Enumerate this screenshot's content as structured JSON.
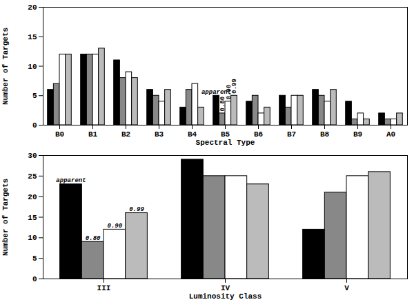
{
  "chart_data": [
    {
      "type": "bar",
      "xlabel": "Spectral Type",
      "ylabel": "Number of Targets",
      "categories": [
        "B0",
        "B1",
        "B2",
        "B3",
        "B4",
        "B5",
        "B6",
        "B7",
        "B8",
        "B9",
        "A0"
      ],
      "series": [
        {
          "name": "apparent",
          "color": "#000000",
          "values": [
            6,
            12,
            11,
            6,
            3,
            5,
            4,
            5,
            6,
            4,
            2
          ]
        },
        {
          "name": "0.80",
          "color": "#888888",
          "values": [
            7,
            12,
            8,
            5,
            6,
            2,
            5,
            3,
            5,
            1,
            1
          ]
        },
        {
          "name": "0.90",
          "color": "#ffffff",
          "values": [
            12,
            12,
            9,
            4,
            7,
            4,
            2,
            5,
            4,
            2,
            1
          ]
        },
        {
          "name": "0.99",
          "color": "#bbbbbb",
          "values": [
            12,
            13,
            8,
            6,
            3,
            5,
            3,
            5,
            6,
            1,
            2
          ]
        }
      ],
      "ylim": [
        0,
        20
      ],
      "yticks": [
        0,
        5,
        10,
        15,
        20
      ],
      "grid": false
    },
    {
      "type": "bar",
      "xlabel": "Luminosity Class",
      "ylabel": "Number of Targets",
      "categories": [
        "III",
        "IV",
        "V"
      ],
      "series": [
        {
          "name": "apparent",
          "color": "#000000",
          "values": [
            23,
            29,
            12
          ]
        },
        {
          "name": "0.80",
          "color": "#888888",
          "values": [
            9,
            25,
            21
          ]
        },
        {
          "name": "0.90",
          "color": "#ffffff",
          "values": [
            12,
            25,
            25
          ]
        },
        {
          "name": "0.99",
          "color": "#bbbbbb",
          "values": [
            16,
            23,
            26
          ]
        }
      ],
      "ylim": [
        0,
        30
      ],
      "yticks": [
        0,
        5,
        10,
        15,
        20,
        25,
        30
      ],
      "grid": false
    }
  ]
}
